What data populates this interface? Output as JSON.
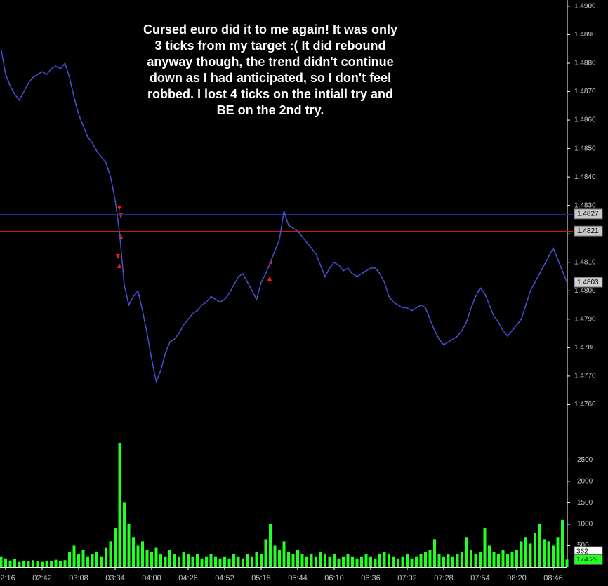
{
  "chart_data": [
    {
      "type": "line",
      "annotation_lines": [
        "Cursed euro did it to me again! It was only",
        "3 ticks from my target :( It did rebound",
        "anyway though, the trend didn't continue",
        "down as I had anticipated, so I don't feel",
        "robbed. I lost 4 ticks on the intiall try and",
        "BE on the 2nd try."
      ],
      "values": [
        1.4885,
        1.4876,
        1.4872,
        1.4869,
        1.4867,
        1.487,
        1.4873,
        1.4875,
        1.4876,
        1.4877,
        1.4876,
        1.4878,
        1.4879,
        1.4878,
        1.488,
        1.4875,
        1.4868,
        1.4862,
        1.4858,
        1.4854,
        1.4852,
        1.4849,
        1.4847,
        1.4845,
        1.484,
        1.4832,
        1.482,
        1.4802,
        1.4795,
        1.4798,
        1.48,
        1.4793,
        1.4785,
        1.4776,
        1.4768,
        1.4772,
        1.4778,
        1.4782,
        1.4783,
        1.4785,
        1.4788,
        1.479,
        1.4792,
        1.4793,
        1.4795,
        1.4796,
        1.4798,
        1.4797,
        1.4796,
        1.4797,
        1.4799,
        1.4802,
        1.4805,
        1.4806,
        1.4803,
        1.48,
        1.4797,
        1.4803,
        1.4806,
        1.481,
        1.4814,
        1.4818,
        1.4828,
        1.4823,
        1.4822,
        1.4821,
        1.4819,
        1.4817,
        1.4815,
        1.4813,
        1.4809,
        1.4805,
        1.4808,
        1.481,
        1.4809,
        1.4807,
        1.4808,
        1.4806,
        1.4805,
        1.4806,
        1.4807,
        1.4808,
        1.4808,
        1.4806,
        1.4803,
        1.4798,
        1.4796,
        1.4795,
        1.4794,
        1.4794,
        1.4793,
        1.4794,
        1.4795,
        1.4794,
        1.479,
        1.4786,
        1.4783,
        1.4781,
        1.4782,
        1.4783,
        1.4784,
        1.4786,
        1.4789,
        1.4794,
        1.4798,
        1.4801,
        1.4799,
        1.4795,
        1.4791,
        1.4789,
        1.4786,
        1.4784,
        1.4786,
        1.4788,
        1.479,
        1.4795,
        1.48,
        1.4803,
        1.4806,
        1.4809,
        1.4812,
        1.4815,
        1.4811,
        1.4807,
        1.4803
      ],
      "color": "#3a46c4",
      "ylim": [
        1.475,
        1.49022
      ],
      "yticks": [
        {
          "value": 1.476,
          "label": "1.4760"
        },
        {
          "value": 1.477,
          "label": "1.4770"
        },
        {
          "value": 1.478,
          "label": "1.4780"
        },
        {
          "value": 1.479,
          "label": "1.4790"
        },
        {
          "value": 1.48,
          "label": "1.4800"
        },
        {
          "value": 1.481,
          "label": "1.4810"
        },
        {
          "value": 1.482,
          "label": "1.4820"
        },
        {
          "value": 1.483,
          "label": "1.4830"
        },
        {
          "value": 1.484,
          "label": "1.4840"
        },
        {
          "value": 1.485,
          "label": "1.4850"
        },
        {
          "value": 1.486,
          "label": "1.4860"
        },
        {
          "value": 1.487,
          "label": "1.4870"
        },
        {
          "value": 1.488,
          "label": "1.4880"
        },
        {
          "value": 1.489,
          "label": "1.4890"
        },
        {
          "value": 1.49,
          "label": "1.4900"
        }
      ],
      "hlines": [
        {
          "value": 1.4827,
          "color": "#1c2a9c"
        },
        {
          "value": 1.4821,
          "color": "#d01818"
        }
      ]
    },
    {
      "type": "bar",
      "categories": [
        null,
        "2:16",
        null,
        null,
        null,
        null,
        null,
        null,
        null,
        "02:42",
        null,
        null,
        null,
        null,
        null,
        null,
        null,
        "03:08",
        null,
        null,
        null,
        null,
        null,
        null,
        null,
        "03:34",
        null,
        null,
        null,
        null,
        null,
        null,
        null,
        "04:00",
        null,
        null,
        null,
        null,
        null,
        null,
        null,
        "04:26",
        null,
        null,
        null,
        null,
        null,
        null,
        null,
        "04:52",
        null,
        null,
        null,
        null,
        null,
        null,
        null,
        "05:18",
        null,
        null,
        null,
        null,
        null,
        null,
        null,
        "05:44",
        null,
        null,
        null,
        null,
        null,
        null,
        null,
        "06:10",
        null,
        null,
        null,
        null,
        null,
        null,
        null,
        "06:36",
        null,
        null,
        null,
        null,
        null,
        null,
        null,
        "07:02",
        null,
        null,
        null,
        null,
        null,
        null,
        null,
        "07:28",
        null,
        null,
        null,
        null,
        null,
        null,
        null,
        "07:54",
        null,
        null,
        null,
        null,
        null,
        null,
        null,
        "08:20",
        null,
        null,
        null,
        null,
        null,
        null,
        null,
        "08:46",
        null,
        null,
        null
      ],
      "values": [
        250,
        200,
        150,
        180,
        120,
        150,
        130,
        160,
        140,
        120,
        150,
        130,
        170,
        140,
        160,
        350,
        500,
        300,
        400,
        250,
        300,
        350,
        250,
        450,
        600,
        900,
        2900,
        1500,
        1000,
        700,
        500,
        600,
        400,
        350,
        450,
        300,
        250,
        400,
        300,
        250,
        350,
        300,
        250,
        300,
        200,
        250,
        300,
        250,
        200,
        250,
        200,
        300,
        250,
        200,
        300,
        250,
        350,
        300,
        650,
        1000,
        500,
        400,
        600,
        350,
        300,
        400,
        300,
        250,
        300,
        250,
        350,
        300,
        250,
        300,
        200,
        250,
        300,
        250,
        200,
        250,
        300,
        250,
        200,
        300,
        350,
        300,
        250,
        200,
        250,
        300,
        200,
        250,
        300,
        350,
        400,
        650,
        300,
        250,
        300,
        250,
        300,
        350,
        700,
        400,
        300,
        350,
        900,
        500,
        350,
        300,
        400,
        300,
        350,
        400,
        600,
        700,
        550,
        800,
        1000,
        650,
        600,
        500,
        700,
        1100,
        174.29
      ],
      "color": "#22ff22",
      "ylim": [
        0,
        3080
      ],
      "yticks": [
        500,
        1000,
        1500,
        2000,
        2500
      ],
      "average": 362
    }
  ]
}
